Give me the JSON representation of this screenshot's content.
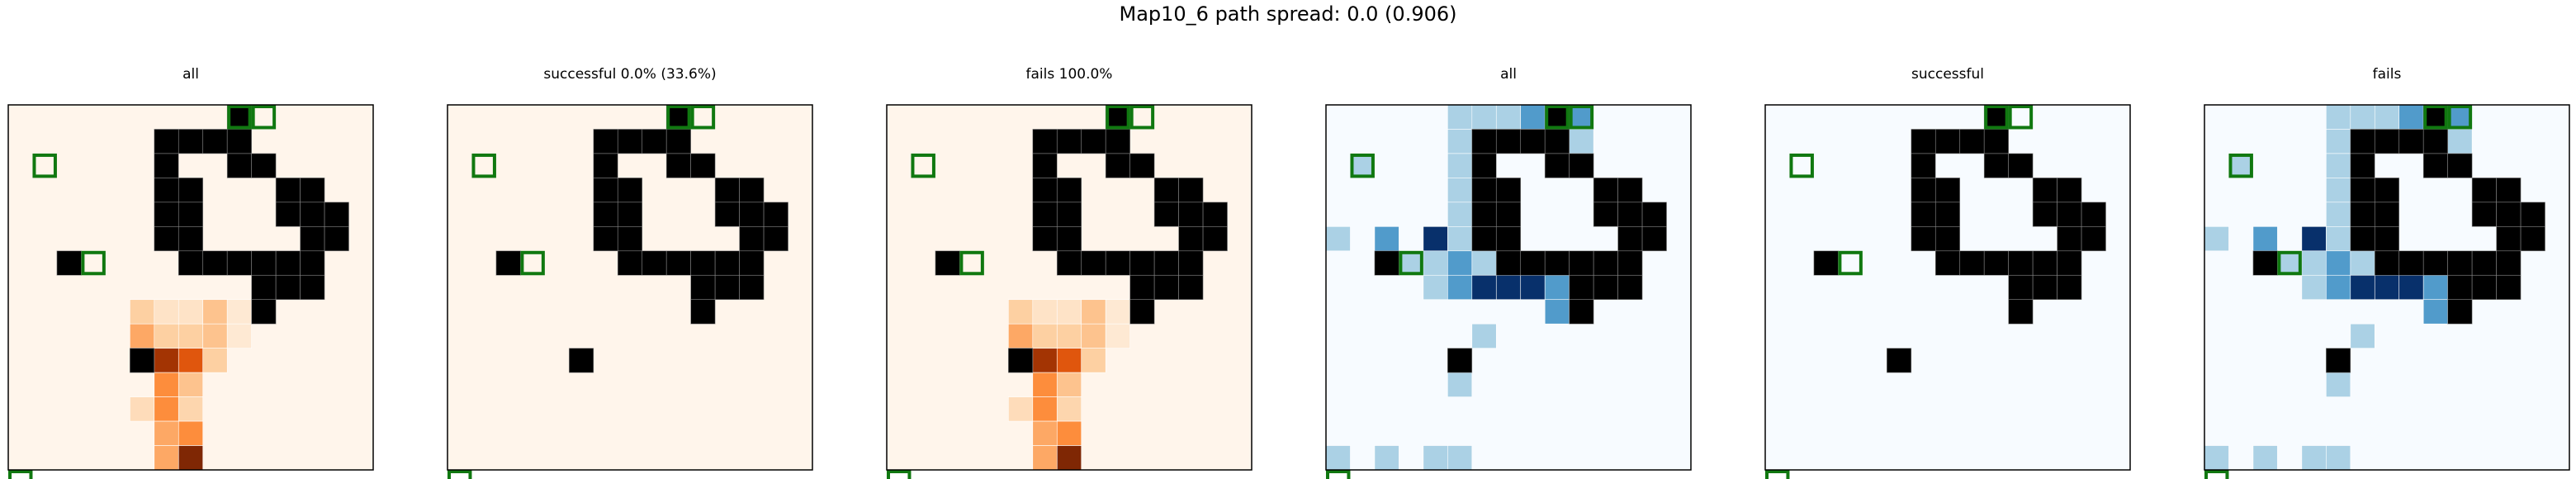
{
  "figure_title": "Map10_6 path spread: 0.0 (0.906)",
  "chart_data": {
    "type": "heatmap",
    "grid_size": 15,
    "walls": [
      [
        9,
        0
      ],
      [
        6,
        1
      ],
      [
        7,
        1
      ],
      [
        8,
        1
      ],
      [
        9,
        1
      ],
      [
        6,
        2
      ],
      [
        9,
        2
      ],
      [
        10,
        2
      ],
      [
        6,
        3
      ],
      [
        7,
        3
      ],
      [
        11,
        3
      ],
      [
        12,
        3
      ],
      [
        6,
        4
      ],
      [
        7,
        4
      ],
      [
        11,
        4
      ],
      [
        12,
        4
      ],
      [
        13,
        4
      ],
      [
        6,
        5
      ],
      [
        7,
        5
      ],
      [
        12,
        5
      ],
      [
        13,
        5
      ],
      [
        2,
        6
      ],
      [
        7,
        6
      ],
      [
        8,
        6
      ],
      [
        9,
        6
      ],
      [
        10,
        6
      ],
      [
        11,
        6
      ],
      [
        12,
        6
      ],
      [
        10,
        7
      ],
      [
        11,
        7
      ],
      [
        12,
        7
      ],
      [
        10,
        8
      ],
      [
        5,
        10
      ]
    ],
    "markers": [
      [
        9,
        -1
      ],
      [
        10,
        -1
      ],
      [
        1,
        1
      ],
      [
        3,
        5
      ],
      [
        0,
        14
      ]
    ],
    "panels": [
      {
        "title": "all",
        "colormap": "Oranges",
        "cells": [
          {
            "x": 5,
            "y": 8,
            "v": 0.3
          },
          {
            "x": 6,
            "y": 8,
            "v": 0.15
          },
          {
            "x": 7,
            "y": 8,
            "v": 0.15
          },
          {
            "x": 8,
            "y": 8,
            "v": 0.35
          },
          {
            "x": 9,
            "y": 8,
            "v": 0.1
          },
          {
            "x": 5,
            "y": 9,
            "v": 0.45
          },
          {
            "x": 6,
            "y": 9,
            "v": 0.3
          },
          {
            "x": 7,
            "y": 9,
            "v": 0.3
          },
          {
            "x": 8,
            "y": 9,
            "v": 0.35
          },
          {
            "x": 9,
            "y": 9,
            "v": 0.1
          },
          {
            "x": 5,
            "y": 10,
            "v": 0.35
          },
          {
            "x": 6,
            "y": 10,
            "v": 0.92
          },
          {
            "x": 7,
            "y": 10,
            "v": 0.75
          },
          {
            "x": 8,
            "y": 10,
            "v": 0.3
          },
          {
            "x": 6,
            "y": 11,
            "v": 0.55
          },
          {
            "x": 7,
            "y": 11,
            "v": 0.35
          },
          {
            "x": 5,
            "y": 12,
            "v": 0.2
          },
          {
            "x": 6,
            "y": 12,
            "v": 0.55
          },
          {
            "x": 7,
            "y": 12,
            "v": 0.25
          },
          {
            "x": 6,
            "y": 13,
            "v": 0.45
          },
          {
            "x": 7,
            "y": 13,
            "v": 0.55
          },
          {
            "x": 6,
            "y": 14,
            "v": 0.45
          },
          {
            "x": 7,
            "y": 14,
            "v": 1.0
          }
        ]
      },
      {
        "title": "successful 0.0% (33.6%)",
        "colormap": "Oranges",
        "cells": []
      },
      {
        "title": "fails 100.0%",
        "colormap": "Oranges",
        "cells": [
          {
            "x": 5,
            "y": 8,
            "v": 0.3
          },
          {
            "x": 6,
            "y": 8,
            "v": 0.15
          },
          {
            "x": 7,
            "y": 8,
            "v": 0.15
          },
          {
            "x": 8,
            "y": 8,
            "v": 0.35
          },
          {
            "x": 9,
            "y": 8,
            "v": 0.1
          },
          {
            "x": 5,
            "y": 9,
            "v": 0.45
          },
          {
            "x": 6,
            "y": 9,
            "v": 0.3
          },
          {
            "x": 7,
            "y": 9,
            "v": 0.3
          },
          {
            "x": 8,
            "y": 9,
            "v": 0.35
          },
          {
            "x": 9,
            "y": 9,
            "v": 0.1
          },
          {
            "x": 5,
            "y": 10,
            "v": 0.35
          },
          {
            "x": 6,
            "y": 10,
            "v": 0.92
          },
          {
            "x": 7,
            "y": 10,
            "v": 0.75
          },
          {
            "x": 8,
            "y": 10,
            "v": 0.3
          },
          {
            "x": 6,
            "y": 11,
            "v": 0.55
          },
          {
            "x": 7,
            "y": 11,
            "v": 0.35
          },
          {
            "x": 5,
            "y": 12,
            "v": 0.2
          },
          {
            "x": 6,
            "y": 12,
            "v": 0.55
          },
          {
            "x": 7,
            "y": 12,
            "v": 0.25
          },
          {
            "x": 6,
            "y": 13,
            "v": 0.45
          },
          {
            "x": 7,
            "y": 13,
            "v": 0.55
          },
          {
            "x": 6,
            "y": 14,
            "v": 0.45
          },
          {
            "x": 7,
            "y": 14,
            "v": 1.0
          }
        ]
      },
      {
        "title": "all",
        "colormap": "Blues",
        "cells": [
          {
            "x": 5,
            "y": 0,
            "v": 0.3
          },
          {
            "x": 6,
            "y": 0,
            "v": 0.3
          },
          {
            "x": 7,
            "y": 0,
            "v": 0.3
          },
          {
            "x": 8,
            "y": 0,
            "v": 0.6
          },
          {
            "x": 9,
            "y": 0,
            "v": 0.6
          },
          {
            "x": 10,
            "y": 0,
            "v": 0.6
          },
          {
            "x": 5,
            "y": 1,
            "v": 0.3
          },
          {
            "x": 5,
            "y": 2,
            "v": 0.3
          },
          {
            "x": 5,
            "y": 3,
            "v": 0.3
          },
          {
            "x": 5,
            "y": 4,
            "v": 0.3
          },
          {
            "x": 5,
            "y": 5,
            "v": 0.3
          },
          {
            "x": 5,
            "y": 6,
            "v": 0.3
          },
          {
            "x": 6,
            "y": 6,
            "v": 0.3
          },
          {
            "x": 5,
            "y": 7,
            "v": 0.3
          },
          {
            "x": 6,
            "y": 7,
            "v": 0.3
          },
          {
            "x": 6,
            "y": 1,
            "v": 1.0
          },
          {
            "x": 7,
            "y": 1,
            "v": 0.6
          },
          {
            "x": 8,
            "y": 1,
            "v": 0.3
          },
          {
            "x": 9,
            "y": 1,
            "v": 0.3
          },
          {
            "x": 10,
            "y": 1,
            "v": 0.3
          },
          {
            "x": 1,
            "y": 2,
            "v": 0.3
          },
          {
            "x": 2,
            "y": 5,
            "v": 0.6
          },
          {
            "x": 0,
            "y": 5,
            "v": 0.3
          },
          {
            "x": 4,
            "y": 5,
            "v": 1.0
          },
          {
            "x": 3,
            "y": 6,
            "v": 0.3
          },
          {
            "x": 4,
            "y": 6,
            "v": 0.3
          },
          {
            "x": 5,
            "y": 6,
            "v": 0.6
          },
          {
            "x": 4,
            "y": 7,
            "v": 0.3
          },
          {
            "x": 5,
            "y": 7,
            "v": 0.6
          },
          {
            "x": 6,
            "y": 7,
            "v": 1.0
          },
          {
            "x": 7,
            "y": 7,
            "v": 1.0
          },
          {
            "x": 8,
            "y": 7,
            "v": 1.0
          },
          {
            "x": 9,
            "y": 7,
            "v": 0.6
          },
          {
            "x": 9,
            "y": 8,
            "v": 0.6
          },
          {
            "x": 6,
            "y": 9,
            "v": 0.3
          },
          {
            "x": 5,
            "y": 11,
            "v": 0.3
          },
          {
            "x": 0,
            "y": 14,
            "v": 0.3
          },
          {
            "x": 2,
            "y": 14,
            "v": 0.3
          },
          {
            "x": 4,
            "y": 14,
            "v": 0.3
          },
          {
            "x": 5,
            "y": 14,
            "v": 0.3
          }
        ]
      },
      {
        "title": "successful",
        "colormap": "Blues",
        "cells": []
      },
      {
        "title": "fails",
        "colormap": "Blues",
        "cells": [
          {
            "x": 5,
            "y": 0,
            "v": 0.3
          },
          {
            "x": 6,
            "y": 0,
            "v": 0.3
          },
          {
            "x": 7,
            "y": 0,
            "v": 0.3
          },
          {
            "x": 8,
            "y": 0,
            "v": 0.6
          },
          {
            "x": 9,
            "y": 0,
            "v": 0.6
          },
          {
            "x": 10,
            "y": 0,
            "v": 0.6
          },
          {
            "x": 5,
            "y": 1,
            "v": 0.3
          },
          {
            "x": 5,
            "y": 2,
            "v": 0.3
          },
          {
            "x": 5,
            "y": 3,
            "v": 0.3
          },
          {
            "x": 5,
            "y": 4,
            "v": 0.3
          },
          {
            "x": 5,
            "y": 5,
            "v": 0.3
          },
          {
            "x": 5,
            "y": 6,
            "v": 0.3
          },
          {
            "x": 6,
            "y": 6,
            "v": 0.3
          },
          {
            "x": 5,
            "y": 7,
            "v": 0.3
          },
          {
            "x": 6,
            "y": 7,
            "v": 0.3
          },
          {
            "x": 6,
            "y": 1,
            "v": 1.0
          },
          {
            "x": 7,
            "y": 1,
            "v": 0.6
          },
          {
            "x": 8,
            "y": 1,
            "v": 0.3
          },
          {
            "x": 9,
            "y": 1,
            "v": 0.3
          },
          {
            "x": 10,
            "y": 1,
            "v": 0.3
          },
          {
            "x": 1,
            "y": 2,
            "v": 0.3
          },
          {
            "x": 2,
            "y": 5,
            "v": 0.6
          },
          {
            "x": 0,
            "y": 5,
            "v": 0.3
          },
          {
            "x": 4,
            "y": 5,
            "v": 1.0
          },
          {
            "x": 3,
            "y": 6,
            "v": 0.3
          },
          {
            "x": 4,
            "y": 6,
            "v": 0.3
          },
          {
            "x": 5,
            "y": 6,
            "v": 0.6
          },
          {
            "x": 4,
            "y": 7,
            "v": 0.3
          },
          {
            "x": 5,
            "y": 7,
            "v": 0.6
          },
          {
            "x": 6,
            "y": 7,
            "v": 1.0
          },
          {
            "x": 7,
            "y": 7,
            "v": 1.0
          },
          {
            "x": 8,
            "y": 7,
            "v": 1.0
          },
          {
            "x": 9,
            "y": 7,
            "v": 0.6
          },
          {
            "x": 9,
            "y": 8,
            "v": 0.6
          },
          {
            "x": 6,
            "y": 9,
            "v": 0.3
          },
          {
            "x": 5,
            "y": 11,
            "v": 0.3
          },
          {
            "x": 0,
            "y": 14,
            "v": 0.3
          },
          {
            "x": 2,
            "y": 14,
            "v": 0.3
          },
          {
            "x": 4,
            "y": 14,
            "v": 0.3
          },
          {
            "x": 5,
            "y": 14,
            "v": 0.3
          }
        ]
      }
    ]
  },
  "colors": {
    "oranges_background": "#fff5eb",
    "blues_background": "#f7fbff",
    "wall": "#000000",
    "marker": "#107810",
    "frame": "#000000"
  }
}
